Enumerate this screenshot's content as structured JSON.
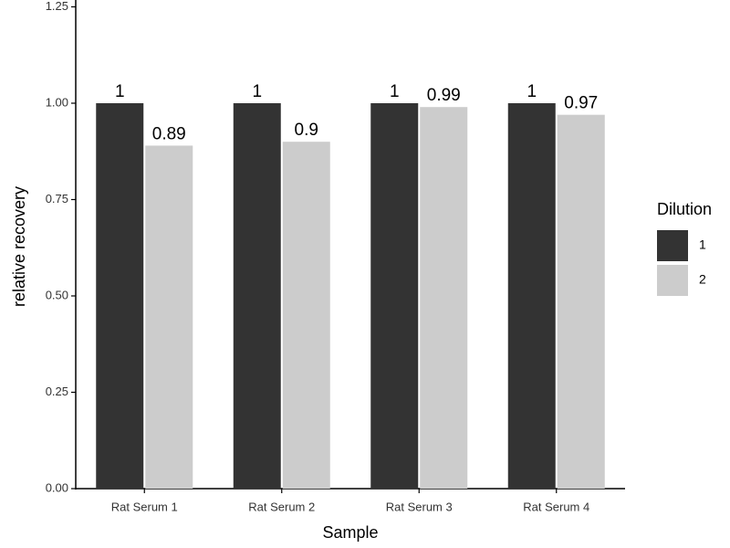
{
  "chart_data": {
    "type": "bar",
    "x_label": "Sample",
    "y_label": "relative recovery",
    "categories": [
      "Rat Serum 1",
      "Rat Serum 2",
      "Rat Serum 3",
      "Rat Serum 4"
    ],
    "series": [
      {
        "name": "1",
        "color": "#333333",
        "values": [
          1,
          1,
          1,
          1
        ]
      },
      {
        "name": "2",
        "color": "#cccccc",
        "values": [
          0.89,
          0.9,
          0.99,
          0.97
        ]
      }
    ],
    "legend_title": "Dilution",
    "ylim": [
      0,
      1.25
    ],
    "yticks": [
      {
        "value": 0,
        "label": "0.00"
      },
      {
        "value": 0.25,
        "label": "0.25"
      },
      {
        "value": 0.5,
        "label": "0.50"
      },
      {
        "value": 0.75,
        "label": "0.75"
      },
      {
        "value": 1,
        "label": "1.00"
      },
      {
        "value": 1.25,
        "label": "1.25"
      }
    ],
    "grid": false,
    "legend_position": "right"
  }
}
